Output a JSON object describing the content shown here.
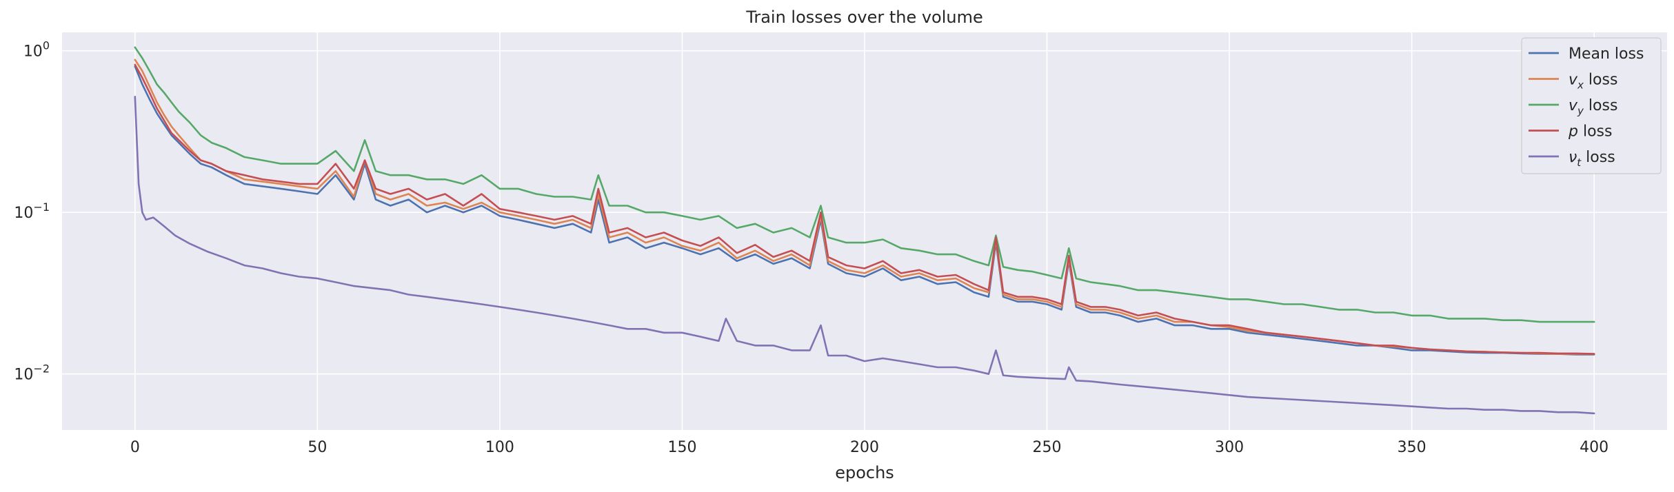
{
  "chart_data": {
    "type": "line",
    "title": "Train losses over the volume",
    "xlabel": "epochs",
    "ylabel": "",
    "xlim": [
      -20,
      420
    ],
    "ylim": [
      0.0045,
      1.3
    ],
    "yscale": "log",
    "grid": true,
    "legend_position": "top-right",
    "x_ticks": [
      0,
      50,
      100,
      150,
      200,
      250,
      300,
      350,
      400
    ],
    "x_tick_labels": [
      "0",
      "50",
      "100",
      "150",
      "200",
      "250",
      "300",
      "350",
      "400"
    ],
    "y_ticks": [
      0.01,
      0.1,
      1
    ],
    "y_tick_labels": [
      {
        "base": "10",
        "exp": "−2"
      },
      {
        "base": "10",
        "exp": "−1"
      },
      {
        "base": "10",
        "exp": "0"
      }
    ],
    "series": [
      {
        "name": "Mean loss",
        "label_main": "Mean loss",
        "label_sub": "",
        "label_tail": "",
        "color": "#4c72b0",
        "x": [
          0,
          2,
          4,
          6,
          8,
          10,
          12,
          15,
          18,
          21,
          25,
          30,
          35,
          40,
          45,
          50,
          55,
          60,
          63,
          66,
          70,
          75,
          80,
          85,
          90,
          95,
          100,
          105,
          110,
          115,
          120,
          125,
          127,
          130,
          135,
          140,
          145,
          150,
          155,
          160,
          165,
          170,
          175,
          180,
          185,
          188,
          190,
          195,
          200,
          205,
          210,
          215,
          220,
          225,
          230,
          234,
          236,
          238,
          242,
          246,
          250,
          254,
          256,
          258,
          262,
          266,
          270,
          275,
          280,
          285,
          290,
          295,
          300,
          305,
          310,
          315,
          320,
          325,
          330,
          335,
          340,
          345,
          350,
          355,
          360,
          365,
          370,
          375,
          380,
          385,
          390,
          395,
          400
        ],
        "y": [
          0.8,
          0.62,
          0.5,
          0.41,
          0.35,
          0.3,
          0.27,
          0.23,
          0.2,
          0.19,
          0.17,
          0.15,
          0.145,
          0.14,
          0.135,
          0.13,
          0.17,
          0.12,
          0.2,
          0.12,
          0.11,
          0.12,
          0.1,
          0.11,
          0.1,
          0.11,
          0.095,
          0.09,
          0.085,
          0.08,
          0.085,
          0.075,
          0.12,
          0.065,
          0.07,
          0.06,
          0.065,
          0.06,
          0.055,
          0.06,
          0.05,
          0.055,
          0.048,
          0.052,
          0.045,
          0.09,
          0.048,
          0.042,
          0.04,
          0.045,
          0.038,
          0.04,
          0.036,
          0.037,
          0.032,
          0.03,
          0.065,
          0.03,
          0.028,
          0.028,
          0.027,
          0.025,
          0.05,
          0.026,
          0.024,
          0.024,
          0.023,
          0.021,
          0.022,
          0.02,
          0.02,
          0.019,
          0.019,
          0.018,
          0.0175,
          0.017,
          0.0165,
          0.016,
          0.0155,
          0.015,
          0.015,
          0.0145,
          0.014,
          0.014,
          0.0138,
          0.0136,
          0.0135,
          0.0135,
          0.0134,
          0.0133,
          0.0133,
          0.0132,
          0.0132
        ]
      },
      {
        "name": "v_x loss",
        "label_main": "v",
        "label_sub": "x",
        "label_tail": " loss",
        "color": "#dd8452",
        "x": [
          0,
          2,
          4,
          6,
          8,
          10,
          12,
          15,
          18,
          21,
          25,
          30,
          35,
          40,
          45,
          50,
          55,
          60,
          63,
          66,
          70,
          75,
          80,
          85,
          90,
          95,
          100,
          105,
          110,
          115,
          120,
          125,
          127,
          130,
          135,
          140,
          145,
          150,
          155,
          160,
          165,
          170,
          175,
          180,
          185,
          188,
          190,
          195,
          200,
          205,
          210,
          215,
          220,
          225,
          230,
          234,
          236,
          238,
          242,
          246,
          250,
          254,
          256,
          258,
          262,
          266,
          270,
          275,
          280,
          285,
          290,
          295,
          300,
          305,
          310,
          315,
          320,
          325,
          330,
          335,
          340,
          345,
          350,
          355,
          360,
          365,
          370,
          375,
          380,
          385,
          390,
          395,
          400
        ],
        "y": [
          0.88,
          0.75,
          0.6,
          0.48,
          0.4,
          0.34,
          0.3,
          0.25,
          0.21,
          0.2,
          0.18,
          0.16,
          0.155,
          0.15,
          0.145,
          0.14,
          0.18,
          0.125,
          0.21,
          0.13,
          0.12,
          0.13,
          0.11,
          0.115,
          0.105,
          0.115,
          0.1,
          0.095,
          0.09,
          0.085,
          0.09,
          0.08,
          0.13,
          0.07,
          0.075,
          0.065,
          0.07,
          0.062,
          0.058,
          0.065,
          0.052,
          0.058,
          0.05,
          0.055,
          0.047,
          0.095,
          0.05,
          0.044,
          0.042,
          0.047,
          0.04,
          0.042,
          0.038,
          0.039,
          0.034,
          0.032,
          0.068,
          0.031,
          0.029,
          0.029,
          0.028,
          0.026,
          0.052,
          0.027,
          0.025,
          0.025,
          0.024,
          0.022,
          0.023,
          0.021,
          0.021,
          0.02,
          0.0195,
          0.0185,
          0.018,
          0.0175,
          0.017,
          0.0165,
          0.016,
          0.0155,
          0.015,
          0.0148,
          0.0145,
          0.0142,
          0.014,
          0.0138,
          0.0137,
          0.0136,
          0.0135,
          0.0134,
          0.0133,
          0.0133,
          0.0133
        ]
      },
      {
        "name": "v_y loss",
        "label_main": "v",
        "label_sub": "y",
        "label_tail": " loss",
        "color": "#55a868",
        "x": [
          0,
          2,
          4,
          6,
          8,
          10,
          12,
          15,
          18,
          21,
          25,
          30,
          35,
          40,
          45,
          50,
          55,
          60,
          63,
          66,
          70,
          75,
          80,
          85,
          90,
          95,
          100,
          105,
          110,
          115,
          120,
          125,
          127,
          130,
          135,
          140,
          145,
          150,
          155,
          160,
          165,
          170,
          175,
          180,
          185,
          188,
          190,
          195,
          200,
          205,
          210,
          215,
          220,
          225,
          230,
          234,
          236,
          238,
          242,
          246,
          250,
          254,
          256,
          258,
          262,
          266,
          270,
          275,
          280,
          285,
          290,
          295,
          300,
          305,
          310,
          315,
          320,
          325,
          330,
          335,
          340,
          345,
          350,
          355,
          360,
          365,
          370,
          375,
          380,
          385,
          390,
          395,
          400
        ],
        "y": [
          1.05,
          0.9,
          0.75,
          0.62,
          0.55,
          0.48,
          0.42,
          0.36,
          0.3,
          0.27,
          0.25,
          0.22,
          0.21,
          0.2,
          0.2,
          0.2,
          0.24,
          0.18,
          0.28,
          0.18,
          0.17,
          0.17,
          0.16,
          0.16,
          0.15,
          0.17,
          0.14,
          0.14,
          0.13,
          0.125,
          0.125,
          0.12,
          0.17,
          0.11,
          0.11,
          0.1,
          0.1,
          0.095,
          0.09,
          0.095,
          0.08,
          0.085,
          0.075,
          0.08,
          0.07,
          0.11,
          0.07,
          0.065,
          0.065,
          0.068,
          0.06,
          0.058,
          0.055,
          0.055,
          0.05,
          0.047,
          0.072,
          0.046,
          0.044,
          0.043,
          0.041,
          0.039,
          0.06,
          0.039,
          0.037,
          0.036,
          0.035,
          0.033,
          0.033,
          0.032,
          0.031,
          0.03,
          0.029,
          0.029,
          0.028,
          0.027,
          0.027,
          0.026,
          0.025,
          0.025,
          0.024,
          0.024,
          0.023,
          0.023,
          0.022,
          0.022,
          0.022,
          0.0215,
          0.0215,
          0.021,
          0.021,
          0.021,
          0.021
        ]
      },
      {
        "name": "p loss",
        "label_main": "p",
        "label_sub": "",
        "label_tail": " loss",
        "color": "#c44e52",
        "x": [
          0,
          2,
          4,
          6,
          8,
          10,
          12,
          15,
          18,
          21,
          25,
          30,
          35,
          40,
          45,
          50,
          55,
          60,
          63,
          66,
          70,
          75,
          80,
          85,
          90,
          95,
          100,
          105,
          110,
          115,
          120,
          125,
          127,
          130,
          135,
          140,
          145,
          150,
          155,
          160,
          165,
          170,
          175,
          180,
          185,
          188,
          190,
          195,
          200,
          205,
          210,
          215,
          220,
          225,
          230,
          234,
          236,
          238,
          242,
          246,
          250,
          254,
          256,
          258,
          262,
          266,
          270,
          275,
          280,
          285,
          290,
          295,
          300,
          305,
          310,
          315,
          320,
          325,
          330,
          335,
          340,
          345,
          350,
          355,
          360,
          365,
          370,
          375,
          380,
          385,
          390,
          395,
          400
        ],
        "y": [
          0.82,
          0.68,
          0.55,
          0.44,
          0.37,
          0.31,
          0.28,
          0.24,
          0.21,
          0.2,
          0.18,
          0.17,
          0.16,
          0.155,
          0.15,
          0.15,
          0.2,
          0.14,
          0.21,
          0.14,
          0.13,
          0.14,
          0.12,
          0.13,
          0.11,
          0.13,
          0.105,
          0.1,
          0.095,
          0.09,
          0.095,
          0.085,
          0.14,
          0.075,
          0.08,
          0.07,
          0.075,
          0.067,
          0.062,
          0.07,
          0.056,
          0.063,
          0.053,
          0.058,
          0.05,
          0.1,
          0.053,
          0.047,
          0.045,
          0.05,
          0.042,
          0.044,
          0.04,
          0.041,
          0.036,
          0.033,
          0.07,
          0.032,
          0.03,
          0.03,
          0.029,
          0.027,
          0.054,
          0.028,
          0.026,
          0.026,
          0.025,
          0.023,
          0.024,
          0.022,
          0.021,
          0.02,
          0.02,
          0.019,
          0.018,
          0.0175,
          0.017,
          0.0165,
          0.016,
          0.0155,
          0.015,
          0.015,
          0.0145,
          0.0142,
          0.014,
          0.0138,
          0.0137,
          0.0136,
          0.0135,
          0.0135,
          0.0134,
          0.0134,
          0.0133
        ]
      },
      {
        "name": "ν_t loss",
        "label_main": "ν",
        "label_sub": "t",
        "label_tail": " loss",
        "color": "#8172b3",
        "x": [
          0,
          1,
          2,
          3,
          5,
          8,
          11,
          15,
          20,
          25,
          30,
          35,
          40,
          45,
          50,
          55,
          60,
          65,
          70,
          75,
          80,
          85,
          90,
          95,
          100,
          105,
          110,
          115,
          120,
          125,
          130,
          135,
          140,
          145,
          150,
          155,
          160,
          162,
          165,
          170,
          175,
          180,
          185,
          188,
          190,
          195,
          200,
          205,
          210,
          215,
          220,
          225,
          230,
          234,
          236,
          238,
          242,
          246,
          250,
          255,
          256,
          258,
          262,
          266,
          270,
          275,
          280,
          285,
          290,
          295,
          300,
          305,
          310,
          315,
          320,
          325,
          330,
          335,
          340,
          345,
          350,
          355,
          360,
          365,
          370,
          375,
          380,
          385,
          390,
          395,
          400
        ],
        "y": [
          0.52,
          0.15,
          0.1,
          0.09,
          0.093,
          0.082,
          0.072,
          0.064,
          0.057,
          0.052,
          0.047,
          0.045,
          0.042,
          0.04,
          0.039,
          0.037,
          0.035,
          0.034,
          0.033,
          0.031,
          0.03,
          0.029,
          0.028,
          0.027,
          0.026,
          0.025,
          0.024,
          0.023,
          0.022,
          0.021,
          0.02,
          0.019,
          0.019,
          0.018,
          0.018,
          0.017,
          0.016,
          0.022,
          0.016,
          0.015,
          0.015,
          0.014,
          0.014,
          0.02,
          0.013,
          0.013,
          0.012,
          0.0125,
          0.012,
          0.0115,
          0.011,
          0.011,
          0.0105,
          0.01,
          0.014,
          0.0098,
          0.0096,
          0.0095,
          0.0094,
          0.0093,
          0.011,
          0.0091,
          0.009,
          0.0088,
          0.0086,
          0.0084,
          0.0082,
          0.008,
          0.0078,
          0.0076,
          0.0074,
          0.0072,
          0.0071,
          0.007,
          0.0069,
          0.0068,
          0.0067,
          0.0066,
          0.0065,
          0.0064,
          0.0063,
          0.0062,
          0.0061,
          0.0061,
          0.006,
          0.006,
          0.0059,
          0.0059,
          0.0058,
          0.0058,
          0.0057
        ]
      }
    ]
  }
}
